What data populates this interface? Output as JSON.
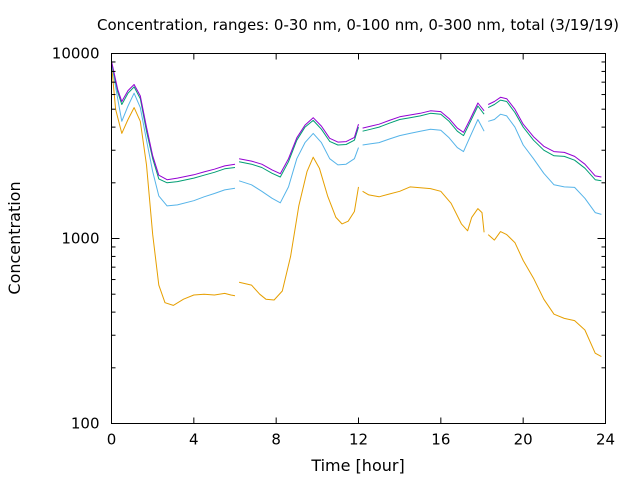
{
  "chart_data": {
    "type": "line",
    "title": "Concentration, ranges: 0-30 nm, 0-100 nm, 0-300 nm, total (3/19/19)",
    "xlabel": "Time [hour]",
    "ylabel": "Concentration",
    "xlim": [
      0,
      24
    ],
    "ylim": [
      100,
      10000
    ],
    "yscale": "log",
    "grid": false,
    "x_ticks": [
      0,
      4,
      8,
      12,
      16,
      20,
      24
    ],
    "x_tick_labels": [
      "0",
      "4",
      "8",
      "12",
      "16",
      "20",
      "24"
    ],
    "y_ticks": [
      100,
      1000,
      10000
    ],
    "y_tick_labels": [
      "100",
      "1000",
      "10000"
    ],
    "series": [
      {
        "color": "#e69f00",
        "segments": [
          [
            [
              0.0,
              8800
            ],
            [
              0.2,
              5000
            ],
            [
              0.5,
              3700
            ],
            [
              0.8,
              4400
            ],
            [
              1.1,
              5100
            ],
            [
              1.4,
              4300
            ],
            [
              1.7,
              2500
            ],
            [
              2.0,
              1050
            ],
            [
              2.3,
              560
            ],
            [
              2.6,
              450
            ],
            [
              3.0,
              435
            ],
            [
              3.5,
              470
            ],
            [
              4.0,
              495
            ],
            [
              4.5,
              500
            ],
            [
              5.0,
              495
            ],
            [
              5.5,
              505
            ],
            [
              5.8,
              495
            ],
            [
              6.0,
              490
            ]
          ],
          [
            [
              6.2,
              580
            ],
            [
              6.8,
              560
            ],
            [
              7.2,
              500
            ],
            [
              7.5,
              470
            ],
            [
              7.9,
              465
            ],
            [
              8.3,
              520
            ],
            [
              8.7,
              800
            ],
            [
              9.1,
              1500
            ],
            [
              9.5,
              2300
            ],
            [
              9.8,
              2750
            ],
            [
              10.1,
              2400
            ],
            [
              10.5,
              1700
            ],
            [
              10.9,
              1300
            ],
            [
              11.2,
              1200
            ],
            [
              11.5,
              1240
            ],
            [
              11.8,
              1400
            ],
            [
              12.0,
              1900
            ]
          ],
          [
            [
              12.2,
              1800
            ],
            [
              12.5,
              1720
            ],
            [
              13.0,
              1680
            ],
            [
              13.5,
              1740
            ],
            [
              14.0,
              1800
            ],
            [
              14.5,
              1900
            ],
            [
              15.0,
              1880
            ],
            [
              15.5,
              1860
            ],
            [
              16.0,
              1800
            ],
            [
              16.5,
              1550
            ],
            [
              17.0,
              1200
            ],
            [
              17.3,
              1100
            ],
            [
              17.5,
              1300
            ],
            [
              17.8,
              1450
            ],
            [
              18.0,
              1380
            ],
            [
              18.1,
              1080
            ]
          ],
          [
            [
              18.3,
              1050
            ],
            [
              18.6,
              980
            ],
            [
              18.9,
              1090
            ],
            [
              19.2,
              1050
            ],
            [
              19.6,
              950
            ],
            [
              20.0,
              760
            ],
            [
              20.5,
              610
            ],
            [
              21.0,
              470
            ],
            [
              21.5,
              390
            ],
            [
              22.0,
              370
            ],
            [
              22.5,
              360
            ],
            [
              23.0,
              320
            ],
            [
              23.5,
              240
            ],
            [
              23.8,
              230
            ]
          ]
        ]
      },
      {
        "color": "#56b4e9",
        "segments": [
          [
            [
              0.0,
              8900
            ],
            [
              0.3,
              5700
            ],
            [
              0.5,
              4300
            ],
            [
              0.8,
              5200
            ],
            [
              1.1,
              6100
            ],
            [
              1.4,
              5100
            ],
            [
              1.7,
              3400
            ],
            [
              2.0,
              2300
            ],
            [
              2.3,
              1700
            ],
            [
              2.7,
              1500
            ],
            [
              3.2,
              1520
            ],
            [
              4.0,
              1600
            ],
            [
              4.5,
              1680
            ],
            [
              5.0,
              1750
            ],
            [
              5.5,
              1830
            ],
            [
              6.0,
              1870
            ]
          ],
          [
            [
              6.2,
              2050
            ],
            [
              6.8,
              1950
            ],
            [
              7.3,
              1800
            ],
            [
              7.8,
              1650
            ],
            [
              8.2,
              1560
            ],
            [
              8.6,
              1900
            ],
            [
              9.0,
              2700
            ],
            [
              9.4,
              3300
            ],
            [
              9.8,
              3700
            ],
            [
              10.2,
              3300
            ],
            [
              10.6,
              2700
            ],
            [
              11.0,
              2500
            ],
            [
              11.4,
              2520
            ],
            [
              11.8,
              2700
            ],
            [
              12.0,
              3100
            ]
          ],
          [
            [
              12.2,
              3200
            ],
            [
              12.6,
              3250
            ],
            [
              13.0,
              3300
            ],
            [
              13.5,
              3450
            ],
            [
              14.0,
              3600
            ],
            [
              14.5,
              3700
            ],
            [
              15.0,
              3800
            ],
            [
              15.5,
              3900
            ],
            [
              16.0,
              3850
            ],
            [
              16.4,
              3500
            ],
            [
              16.8,
              3100
            ],
            [
              17.1,
              2950
            ],
            [
              17.4,
              3500
            ],
            [
              17.8,
              4400
            ],
            [
              18.1,
              3800
            ]
          ],
          [
            [
              18.3,
              4300
            ],
            [
              18.6,
              4400
            ],
            [
              18.9,
              4700
            ],
            [
              19.2,
              4600
            ],
            [
              19.6,
              4000
            ],
            [
              20.0,
              3200
            ],
            [
              20.5,
              2700
            ],
            [
              21.0,
              2250
            ],
            [
              21.5,
              1950
            ],
            [
              22.0,
              1900
            ],
            [
              22.5,
              1890
            ],
            [
              23.0,
              1650
            ],
            [
              23.5,
              1380
            ],
            [
              23.8,
              1350
            ]
          ]
        ]
      },
      {
        "color": "#009e73",
        "segments": [
          [
            [
              0.0,
              9000
            ],
            [
              0.3,
              6200
            ],
            [
              0.5,
              5300
            ],
            [
              0.8,
              6100
            ],
            [
              1.1,
              6600
            ],
            [
              1.4,
              5700
            ],
            [
              1.7,
              3800
            ],
            [
              2.0,
              2700
            ],
            [
              2.3,
              2100
            ],
            [
              2.7,
              2000
            ],
            [
              3.2,
              2030
            ],
            [
              4.0,
              2120
            ],
            [
              4.5,
              2200
            ],
            [
              5.0,
              2280
            ],
            [
              5.5,
              2380
            ],
            [
              6.0,
              2420
            ]
          ],
          [
            [
              6.2,
              2600
            ],
            [
              6.8,
              2520
            ],
            [
              7.3,
              2420
            ],
            [
              7.8,
              2250
            ],
            [
              8.2,
              2150
            ],
            [
              8.6,
              2600
            ],
            [
              9.0,
              3400
            ],
            [
              9.4,
              4000
            ],
            [
              9.8,
              4350
            ],
            [
              10.2,
              3900
            ],
            [
              10.6,
              3350
            ],
            [
              11.0,
              3200
            ],
            [
              11.4,
              3220
            ],
            [
              11.8,
              3400
            ],
            [
              12.0,
              4000
            ]
          ],
          [
            [
              12.2,
              3800
            ],
            [
              12.6,
              3900
            ],
            [
              13.0,
              4000
            ],
            [
              13.5,
              4200
            ],
            [
              14.0,
              4400
            ],
            [
              14.5,
              4500
            ],
            [
              15.0,
              4600
            ],
            [
              15.5,
              4750
            ],
            [
              16.0,
              4700
            ],
            [
              16.4,
              4300
            ],
            [
              16.8,
              3800
            ],
            [
              17.1,
              3600
            ],
            [
              17.4,
              4200
            ],
            [
              17.8,
              5200
            ],
            [
              18.1,
              4700
            ]
          ],
          [
            [
              18.3,
              5100
            ],
            [
              18.6,
              5300
            ],
            [
              18.9,
              5600
            ],
            [
              19.2,
              5500
            ],
            [
              19.6,
              4800
            ],
            [
              20.0,
              4000
            ],
            [
              20.5,
              3400
            ],
            [
              21.0,
              3000
            ],
            [
              21.5,
              2800
            ],
            [
              22.0,
              2780
            ],
            [
              22.5,
              2650
            ],
            [
              23.0,
              2400
            ],
            [
              23.5,
              2080
            ],
            [
              23.8,
              2050
            ]
          ]
        ]
      },
      {
        "color": "#9400d3",
        "segments": [
          [
            [
              0.0,
              9100
            ],
            [
              0.3,
              6400
            ],
            [
              0.5,
              5500
            ],
            [
              0.8,
              6300
            ],
            [
              1.1,
              6800
            ],
            [
              1.4,
              5900
            ],
            [
              1.7,
              4000
            ],
            [
              2.0,
              2800
            ],
            [
              2.3,
              2200
            ],
            [
              2.7,
              2080
            ],
            [
              3.2,
              2120
            ],
            [
              4.0,
              2210
            ],
            [
              4.5,
              2290
            ],
            [
              5.0,
              2370
            ],
            [
              5.5,
              2470
            ],
            [
              6.0,
              2520
            ]
          ],
          [
            [
              6.2,
              2700
            ],
            [
              6.8,
              2620
            ],
            [
              7.3,
              2520
            ],
            [
              7.8,
              2350
            ],
            [
              8.2,
              2240
            ],
            [
              8.6,
              2700
            ],
            [
              9.0,
              3500
            ],
            [
              9.4,
              4100
            ],
            [
              9.8,
              4500
            ],
            [
              10.2,
              4050
            ],
            [
              10.6,
              3480
            ],
            [
              11.0,
              3320
            ],
            [
              11.4,
              3340
            ],
            [
              11.8,
              3520
            ],
            [
              12.0,
              4150
            ]
          ],
          [
            [
              12.2,
              3950
            ],
            [
              12.6,
              4050
            ],
            [
              13.0,
              4150
            ],
            [
              13.5,
              4350
            ],
            [
              14.0,
              4550
            ],
            [
              14.5,
              4650
            ],
            [
              15.0,
              4750
            ],
            [
              15.5,
              4900
            ],
            [
              16.0,
              4850
            ],
            [
              16.4,
              4450
            ],
            [
              16.8,
              3950
            ],
            [
              17.1,
              3750
            ],
            [
              17.4,
              4350
            ],
            [
              17.8,
              5400
            ],
            [
              18.1,
              4900
            ]
          ],
          [
            [
              18.3,
              5300
            ],
            [
              18.6,
              5500
            ],
            [
              18.9,
              5800
            ],
            [
              19.2,
              5700
            ],
            [
              19.6,
              5000
            ],
            [
              20.0,
              4150
            ],
            [
              20.5,
              3550
            ],
            [
              21.0,
              3150
            ],
            [
              21.5,
              2950
            ],
            [
              22.0,
              2920
            ],
            [
              22.5,
              2780
            ],
            [
              23.0,
              2520
            ],
            [
              23.5,
              2180
            ],
            [
              23.8,
              2150
            ]
          ]
        ]
      }
    ]
  }
}
